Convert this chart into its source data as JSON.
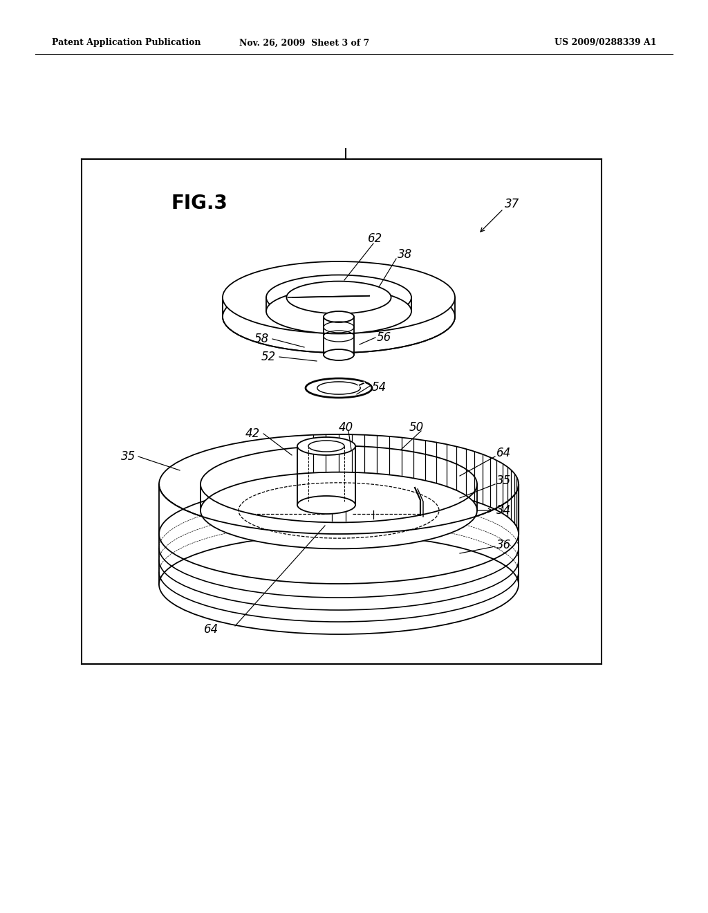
{
  "bg_color": "#ffffff",
  "header_left": "Patent Application Publication",
  "header_center": "Nov. 26, 2009  Sheet 3 of 7",
  "header_right": "US 2009/0288339 A1",
  "line_color": "#000000",
  "fig_label": "FIG.3"
}
